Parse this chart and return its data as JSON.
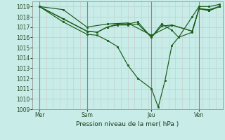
{
  "title": "Pression niveau de la mer( hPa )",
  "bg_color": "#c8ece8",
  "grid_color": "#b0d8d4",
  "line_color": "#1a5c1a",
  "vline_color": "#888888",
  "xlim": [
    0,
    280
  ],
  "ylim": [
    1009,
    1019.5
  ],
  "yticks": [
    1009,
    1010,
    1011,
    1012,
    1013,
    1014,
    1015,
    1016,
    1017,
    1018,
    1019
  ],
  "xtick_labels": [
    "Mer",
    "Sam",
    "Jeu",
    "Ven"
  ],
  "xtick_positions": [
    10,
    80,
    175,
    245
  ],
  "vlines": [
    10,
    80,
    175,
    245
  ],
  "series": [
    {
      "x": [
        10,
        45,
        80,
        95,
        110,
        125,
        140,
        155,
        175,
        185,
        195,
        205,
        215,
        235,
        245,
        260,
        275
      ],
      "y": [
        1019.0,
        1017.5,
        1016.3,
        1016.2,
        1015.7,
        1015.1,
        1013.3,
        1012.0,
        1011.0,
        1009.2,
        1011.8,
        1015.2,
        1016.0,
        1018.0,
        1019.0,
        1019.0,
        1019.2
      ]
    },
    {
      "x": [
        10,
        45,
        80,
        95,
        110,
        125,
        140,
        155,
        175,
        190,
        205,
        215,
        235,
        245,
        260,
        275
      ],
      "y": [
        1019.0,
        1017.8,
        1016.6,
        1016.5,
        1017.0,
        1017.2,
        1017.2,
        1017.3,
        1016.0,
        1017.3,
        1016.7,
        1016.0,
        1016.5,
        1018.8,
        1018.6,
        1019.0
      ]
    },
    {
      "x": [
        10,
        45,
        80,
        95,
        110,
        125,
        140,
        155,
        175,
        190,
        205,
        235,
        245,
        260,
        275
      ],
      "y": [
        1019.0,
        1017.8,
        1016.6,
        1016.5,
        1017.0,
        1017.3,
        1017.3,
        1017.5,
        1016.0,
        1017.1,
        1017.2,
        1016.6,
        1018.8,
        1018.7,
        1019.0
      ]
    },
    {
      "x": [
        10,
        45,
        80,
        110,
        140,
        175,
        205,
        235,
        245,
        260,
        275
      ],
      "y": [
        1019.0,
        1018.7,
        1017.0,
        1017.3,
        1017.4,
        1016.2,
        1017.2,
        1016.6,
        1018.8,
        1018.6,
        1019.0
      ]
    }
  ]
}
